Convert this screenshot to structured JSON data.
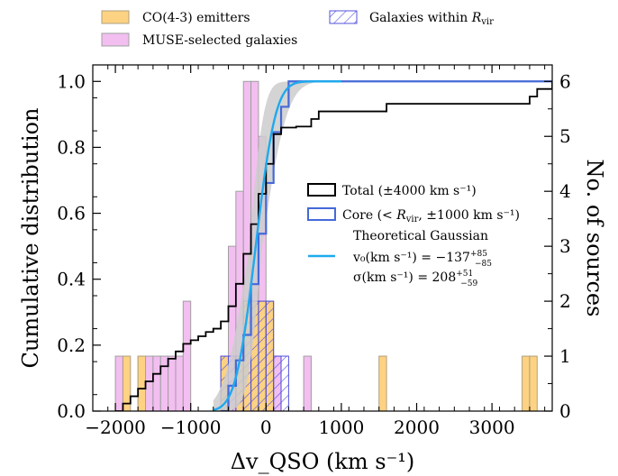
{
  "chart_data": {
    "type": "bar",
    "title": "",
    "xlabel": "Δv_QSO (km s⁻¹)",
    "ylabel": "Cumulative distribution",
    "ylabel_right": "No. of sources",
    "xlim": [
      -2300,
      3800
    ],
    "ylim": [
      0,
      1.05
    ],
    "ylim_right": [
      0,
      6.3
    ],
    "bin_width": 100,
    "x_ticks": [
      -2000,
      -1000,
      0,
      1000,
      2000,
      3000
    ],
    "x_tick_labels": [
      "−2000",
      "−1000",
      "0",
      "1000",
      "2000",
      "3000"
    ],
    "y_ticks": [
      0.0,
      0.2,
      0.4,
      0.6,
      0.8,
      1.0
    ],
    "y_tick_labels": [
      "0.0",
      "0.2",
      "0.4",
      "0.6",
      "0.8",
      "1.0"
    ],
    "y_right_ticks": [
      0,
      1,
      2,
      3,
      4,
      5,
      6
    ],
    "y_right_tick_labels": [
      "0",
      "1",
      "2",
      "3",
      "4",
      "5",
      "6"
    ],
    "legend_top": {
      "co_label": "CO(4-3) emitters",
      "muse_label": "MUSE-selected galaxies",
      "rvir_label_prefix": "Galaxies within ",
      "rvir_label_R": "R",
      "rvir_label_sub": "vir"
    },
    "legend_inner": {
      "total_label": "Total (±4000 km s⁻¹)",
      "core_label_a": "Core (< ",
      "core_label_R": "R",
      "core_label_sub": "vir",
      "core_label_b": ", ±1000 km s⁻¹)",
      "gauss_title": "Theoretical Gaussian",
      "gauss_v0": "v₀(km s⁻¹) = −137",
      "gauss_v0_sup": "+85",
      "gauss_v0_sub": "−85",
      "gauss_sigma": "σ(km s⁻¹) = 208",
      "gauss_sigma_sup": "+51",
      "gauss_sigma_sub": "−59"
    },
    "histograms": {
      "muse": {
        "name": "MUSE-selected galaxies",
        "bin_left": [
          -2000,
          -1700,
          -1600,
          -1500,
          -1400,
          -1300,
          -1200,
          -1100,
          -600,
          -500,
          -400,
          -300,
          -200,
          -100,
          0,
          100,
          500
        ],
        "counts": [
          1,
          1,
          1,
          1,
          1,
          1,
          1,
          2,
          1,
          3,
          4,
          6,
          6,
          5,
          2,
          1,
          1
        ]
      },
      "co": {
        "name": "CO(4-3) emitters",
        "bin_left": [
          -1900,
          -1700,
          -600,
          -400,
          -300,
          -200,
          -100,
          0,
          1500,
          3400,
          3500
        ],
        "counts": [
          1,
          1,
          1,
          1,
          2,
          2,
          2,
          2,
          1,
          1,
          1
        ]
      },
      "rvir": {
        "name": "Galaxies within Rvir",
        "bin_left": [
          -600,
          -500,
          -400,
          -300,
          -200,
          -100,
          0,
          100,
          200
        ],
        "counts": [
          1,
          1,
          1,
          2,
          2,
          2,
          2,
          1,
          1
        ]
      }
    },
    "cdf_total": {
      "name": "Total (±4000 km s⁻¹)",
      "x": [
        -2000,
        -1900,
        -1800,
        -1700,
        -1600,
        -1500,
        -1400,
        -1300,
        -1200,
        -1100,
        -1000,
        -900,
        -800,
        -700,
        -600,
        -500,
        -400,
        -300,
        -200,
        -100,
        0,
        100,
        200,
        300,
        400,
        500,
        600,
        700,
        1500,
        1600,
        3400,
        3500,
        3600,
        3800
      ],
      "y": [
        0.0,
        0.023,
        0.045,
        0.068,
        0.09,
        0.113,
        0.136,
        0.159,
        0.181,
        0.204,
        0.215,
        0.227,
        0.24,
        0.25,
        0.272,
        0.318,
        0.386,
        0.477,
        0.567,
        0.659,
        0.75,
        0.84,
        0.86,
        0.86,
        0.863,
        0.863,
        0.886,
        0.909,
        0.909,
        0.932,
        0.932,
        0.954,
        0.977,
        1.0
      ]
    },
    "cdf_core": {
      "name": "Core (< Rvir, ±1000 km s⁻¹)",
      "x": [
        -600,
        -500,
        -400,
        -300,
        -200,
        -100,
        0,
        100,
        200,
        300,
        3800
      ],
      "y": [
        0.0,
        0.077,
        0.154,
        0.231,
        0.385,
        0.538,
        0.692,
        0.846,
        0.923,
        1.0,
        1.0
      ]
    },
    "gaussian": {
      "name": "Theoretical Gaussian",
      "v0": -137,
      "v0_err_plus": 85,
      "v0_err_minus": 85,
      "sigma": 208,
      "sigma_err_plus": 51,
      "sigma_err_minus": 59
    },
    "colors": {
      "co": "#fdd282",
      "co_edge": "#b0a080",
      "muse": "#f2bff0",
      "muse_edge": "#a0a0a0",
      "rvir": "#5050dd",
      "total": "#000000",
      "core": "#4469d8",
      "gaussian": "#1eaaee",
      "band": "#cccccc"
    }
  }
}
